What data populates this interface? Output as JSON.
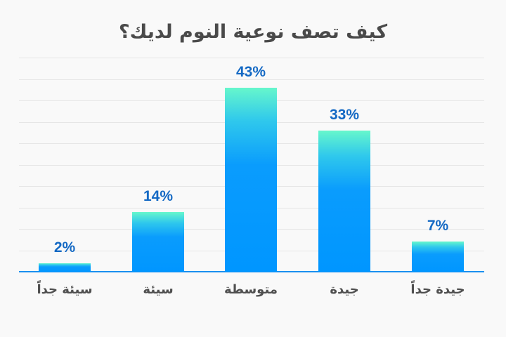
{
  "title": "كيف تصف نوعية النوم لديك؟",
  "colors": {
    "bar_top": "#66f7cc",
    "bar_bottom": "#0096ff",
    "value_label": "#1469c4",
    "axis": "#1a90f0",
    "grid": "#e6e6e6",
    "background": "#f9f9f9"
  },
  "chart_data": {
    "type": "bar",
    "title": "كيف تصف نوعية النوم لديك؟",
    "categories": [
      "سيئة جداً",
      "سيئة",
      "متوسطة",
      "جيدة",
      "جيدة جداً"
    ],
    "values": [
      2,
      14,
      43,
      33,
      7
    ],
    "value_labels": [
      "2%",
      "14%",
      "43%",
      "33%",
      "7%"
    ],
    "xlabel": "",
    "ylabel": "",
    "ylim": [
      0,
      50
    ],
    "grid": true,
    "gridlines": 10,
    "legend": null,
    "unit": "%"
  }
}
